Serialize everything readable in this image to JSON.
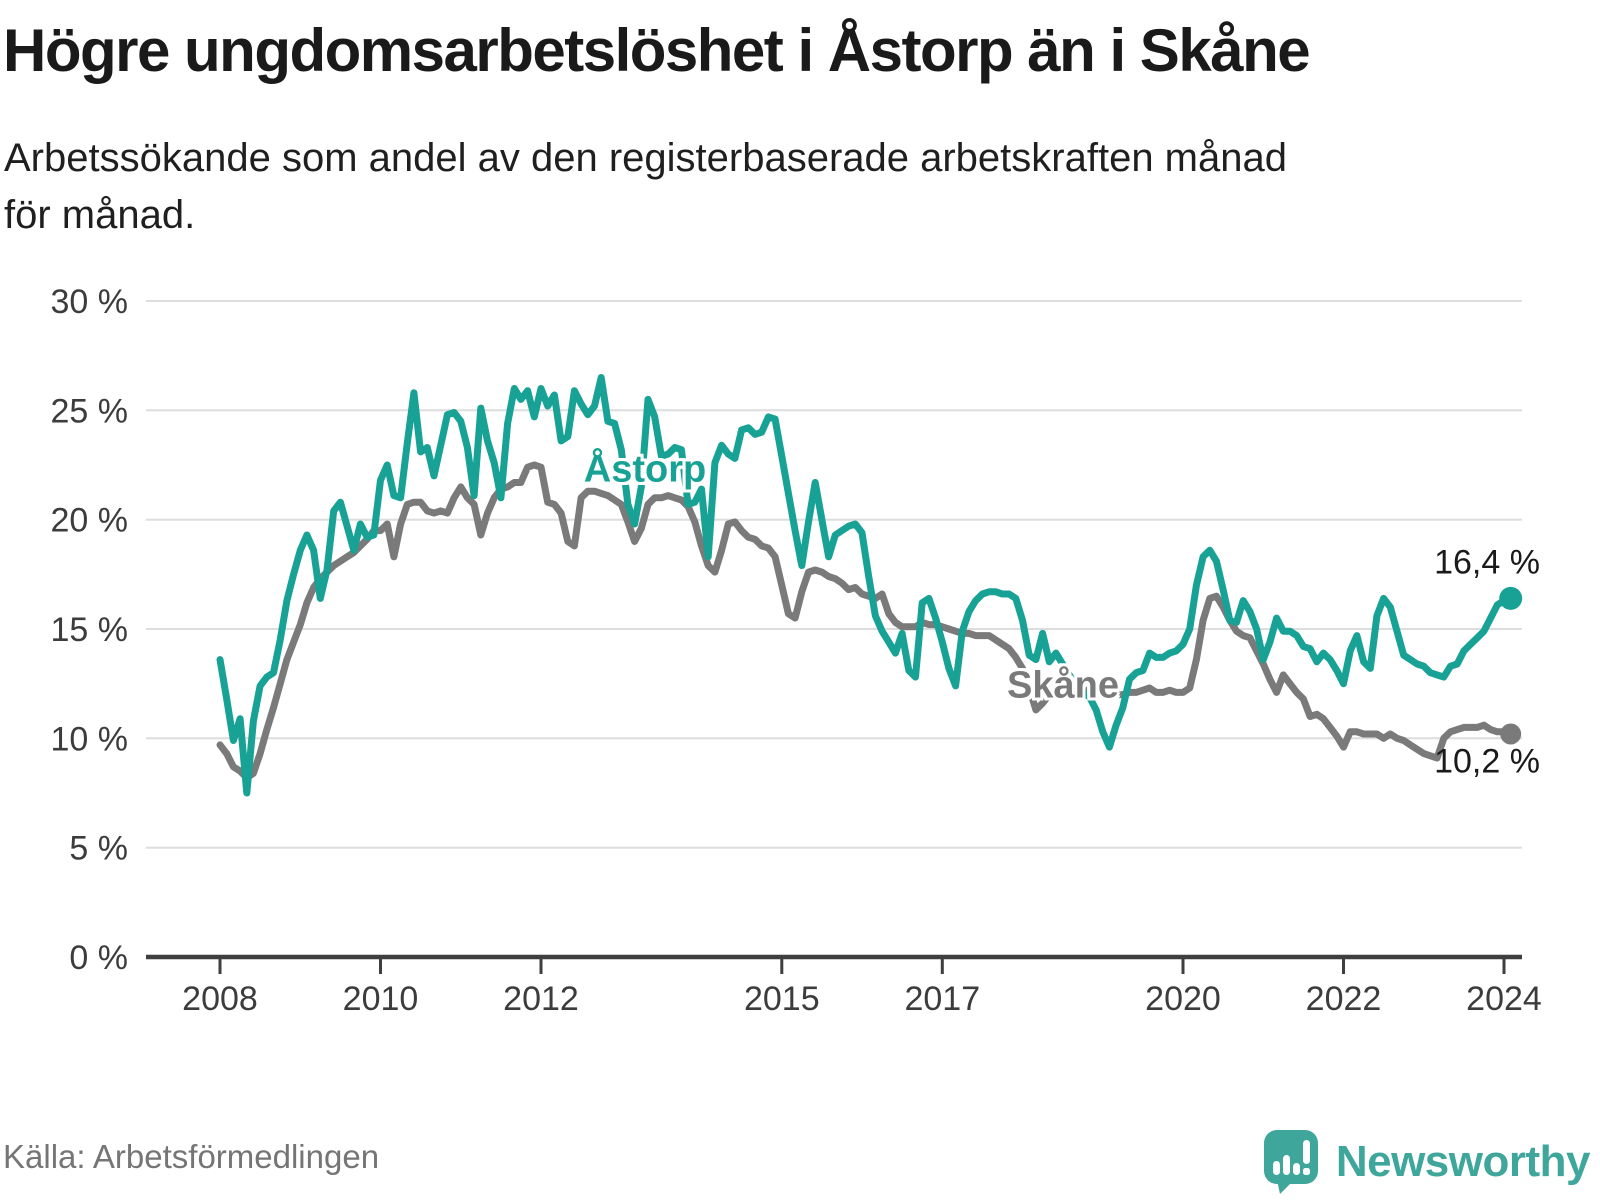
{
  "header": {
    "title": "Högre ungdomsarbetslöshet i Åstorp än i Skåne",
    "subtitle_line1": "Arbetssökande som andel av den registerbaserade arbetskraften månad",
    "subtitle_line2": "för månad."
  },
  "annotations": {
    "astorp_label": "Åstorp",
    "skane_label": "Skåne",
    "astorp_end_value": "16,4 %",
    "skane_end_value": "10,2 %"
  },
  "footer": {
    "source": "Källa: Arbetsförmedlingen",
    "brand_name": "Newsworthy"
  },
  "colors": {
    "astorp": "#18a295",
    "skane": "#7a7a7a",
    "grid": "#dddddd",
    "axis": "#3f3f3f",
    "axis_text": "#3c3c3c",
    "brand": "#3fa69c",
    "source_text": "#757575"
  },
  "chart_data": {
    "type": "line",
    "title": "Högre ungdomsarbetslöshet i Åstorp än i Skåne",
    "xlabel": "",
    "ylabel": "Arbetssökande som andel av den registerbaserade arbetskraften",
    "x_start_year": 2008,
    "x_start_month": 1,
    "x_step_months": 1,
    "x_end_year": 2024,
    "x_end_month": 2,
    "ylim": [
      0,
      30
    ],
    "grid": true,
    "legend_position": "inline-labels",
    "y_ticks": [
      "0 %",
      "5 %",
      "10 %",
      "15 %",
      "20 %",
      "25 %",
      "30 %"
    ],
    "x_ticks": [
      2008,
      2010,
      2012,
      2015,
      2017,
      2020,
      2022,
      2024
    ],
    "end_dot_values": {
      "Åstorp": 16.4,
      "Skåne": 10.2
    },
    "series": [
      {
        "name": "Åstorp",
        "color": "#18a295",
        "values": [
          13.6,
          11.8,
          9.9,
          10.9,
          7.5,
          10.8,
          12.4,
          12.8,
          13.0,
          14.5,
          16.3,
          17.5,
          18.6,
          19.3,
          18.6,
          16.4,
          17.7,
          20.4,
          20.8,
          19.7,
          18.6,
          19.8,
          19.2,
          19.3,
          21.8,
          22.5,
          21.1,
          21.0,
          23.5,
          25.8,
          23.1,
          23.3,
          22.0,
          23.4,
          24.8,
          24.9,
          24.5,
          23.3,
          21.1,
          25.1,
          23.6,
          22.6,
          21.0,
          24.4,
          26.0,
          25.5,
          25.9,
          24.7,
          26.0,
          25.2,
          25.7,
          23.6,
          23.8,
          25.9,
          25.3,
          24.8,
          25.2,
          26.5,
          24.5,
          24.4,
          23.2,
          20.7,
          19.8,
          21.5,
          25.5,
          24.7,
          22.9,
          23.0,
          23.3,
          23.2,
          20.7,
          20.8,
          21.4,
          18.3,
          22.6,
          23.4,
          23.0,
          22.8,
          24.1,
          24.2,
          23.9,
          24.0,
          24.7,
          24.6,
          22.9,
          21.2,
          19.5,
          17.9,
          19.9,
          21.7,
          20.0,
          18.3,
          19.3,
          19.5,
          19.7,
          19.8,
          19.4,
          17.4,
          15.6,
          14.9,
          14.4,
          13.9,
          14.8,
          13.1,
          12.8,
          16.2,
          16.4,
          15.5,
          14.4,
          13.2,
          12.4,
          14.9,
          15.8,
          16.3,
          16.6,
          16.7,
          16.7,
          16.6,
          16.6,
          16.4,
          15.4,
          13.8,
          13.6,
          14.8,
          13.5,
          13.9,
          13.4,
          12.9,
          12.4,
          12.1,
          11.9,
          11.3,
          10.3,
          9.6,
          10.6,
          11.4,
          12.7,
          13.0,
          13.1,
          13.9,
          13.7,
          13.7,
          13.9,
          14.0,
          14.3,
          15.0,
          17.0,
          18.3,
          18.6,
          18.1,
          16.8,
          15.4,
          15.3,
          16.3,
          15.8,
          15.0,
          13.6,
          14.4,
          15.5,
          14.9,
          14.9,
          14.7,
          14.2,
          14.1,
          13.5,
          13.9,
          13.6,
          13.1,
          12.5,
          14.0,
          14.7,
          13.5,
          13.2,
          15.6,
          16.4,
          16.0,
          14.9,
          13.8,
          13.6,
          13.4,
          13.3,
          13.0,
          12.9,
          12.8,
          13.3,
          13.4,
          14.0,
          14.3,
          14.6,
          14.9,
          15.5,
          16.1,
          16.3,
          16.4
        ]
      },
      {
        "name": "Skåne",
        "color": "#7a7a7a",
        "values": [
          9.7,
          9.3,
          8.7,
          8.5,
          8.2,
          8.4,
          9.3,
          10.4,
          11.4,
          12.5,
          13.6,
          14.4,
          15.2,
          16.2,
          16.9,
          17.3,
          17.6,
          17.9,
          18.1,
          18.3,
          18.5,
          18.8,
          19.1,
          19.5,
          19.5,
          19.8,
          18.3,
          19.8,
          20.7,
          20.8,
          20.8,
          20.4,
          20.3,
          20.4,
          20.3,
          21.0,
          21.5,
          21.0,
          20.7,
          19.3,
          20.3,
          21.0,
          21.4,
          21.5,
          21.7,
          21.7,
          22.4,
          22.5,
          22.4,
          20.8,
          20.7,
          20.3,
          19.0,
          18.8,
          21.0,
          21.3,
          21.3,
          21.2,
          21.1,
          20.9,
          20.7,
          19.9,
          19.0,
          19.6,
          20.7,
          21.0,
          21.0,
          21.1,
          21.0,
          20.9,
          20.6,
          19.9,
          18.8,
          17.9,
          17.6,
          18.6,
          19.8,
          19.9,
          19.5,
          19.2,
          19.1,
          18.8,
          18.7,
          18.3,
          17.0,
          15.7,
          15.5,
          16.7,
          17.6,
          17.7,
          17.6,
          17.4,
          17.3,
          17.1,
          16.8,
          16.9,
          16.6,
          16.5,
          16.4,
          16.6,
          15.7,
          15.3,
          15.1,
          15.1,
          15.1,
          15.3,
          15.2,
          15.2,
          15.1,
          15.0,
          14.9,
          14.8,
          14.8,
          14.7,
          14.7,
          14.7,
          14.5,
          14.3,
          14.1,
          13.7,
          13.2,
          12.3,
          11.3,
          11.6,
          12.0,
          12.2,
          12.4,
          12.4,
          12.3,
          12.2,
          12.2,
          12.1,
          12.0,
          11.9,
          12.0,
          12.0,
          12.1,
          12.1,
          12.2,
          12.3,
          12.1,
          12.1,
          12.2,
          12.1,
          12.1,
          12.3,
          13.6,
          15.4,
          16.4,
          16.5,
          16.0,
          15.4,
          14.9,
          14.7,
          14.6,
          14.0,
          13.4,
          12.7,
          12.1,
          12.9,
          12.5,
          12.1,
          11.8,
          11.0,
          11.1,
          10.9,
          10.5,
          10.1,
          9.6,
          10.3,
          10.3,
          10.2,
          10.2,
          10.2,
          10.0,
          10.2,
          10.0,
          9.9,
          9.7,
          9.5,
          9.3,
          9.2,
          9.1,
          10.0,
          10.3,
          10.4,
          10.5,
          10.5,
          10.5,
          10.6,
          10.4,
          10.3,
          10.3,
          10.2
        ]
      }
    ]
  }
}
